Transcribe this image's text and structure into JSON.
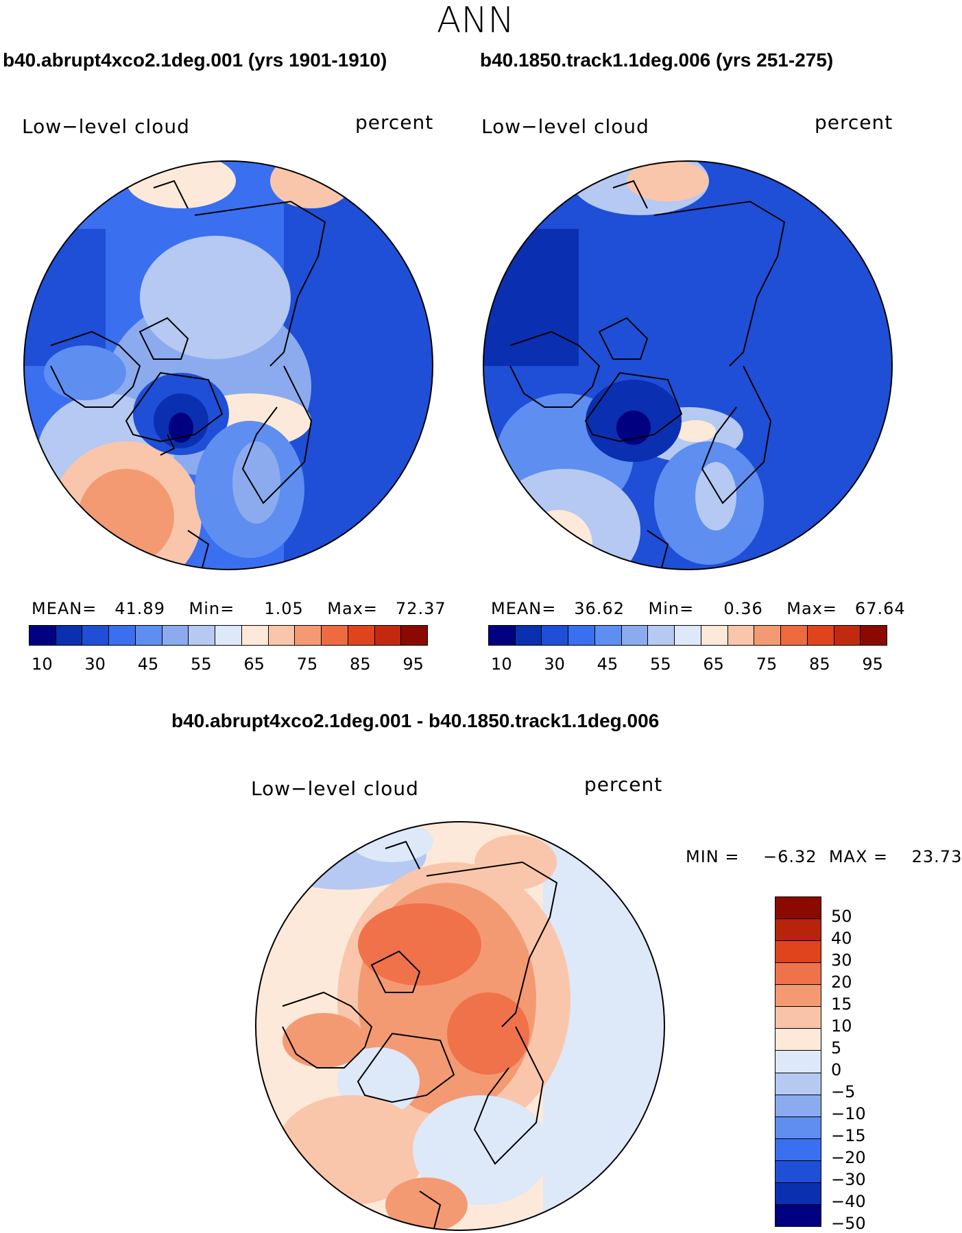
{
  "season": "ANN",
  "panels": [
    {
      "title": "b40.abrupt4xco2.1deg.001 (yrs 1901-1910)",
      "variable": "Low−level cloud",
      "units": "percent",
      "stats": {
        "mean_label": "MEAN=",
        "mean": "41.89",
        "min_label": "Min=",
        "min": "1.05",
        "max_label": "Max=",
        "max": "72.37"
      }
    },
    {
      "title": "b40.1850.track1.1deg.006 (yrs 251-275)",
      "variable": "Low−level cloud",
      "units": "percent",
      "stats": {
        "mean_label": "MEAN=",
        "mean": "36.62",
        "min_label": "Min=",
        "min": "0.36",
        "max_label": "Max=",
        "max": "67.64"
      }
    }
  ],
  "diff": {
    "title": "b40.abrupt4xco2.1deg.001 - b40.1850.track1.1deg.006",
    "variable": "Low−level cloud",
    "units": "percent",
    "stats": {
      "min_label": "MIN =",
      "min": "−6.32",
      "max_label": "MAX =",
      "max": "23.73"
    }
  },
  "colorbar_main": {
    "colors": [
      "#000080",
      "#0a2fb0",
      "#1e4fd6",
      "#3a6ff0",
      "#5e8ef0",
      "#8cabef",
      "#b5c9f2",
      "#dde8f8",
      "#fde9d9",
      "#f9c6ab",
      "#f49a73",
      "#ee6a3f",
      "#e0441c",
      "#c22a0f",
      "#8b0a00"
    ],
    "tick_labels": [
      "10",
      "30",
      "45",
      "55",
      "65",
      "75",
      "85",
      "95"
    ]
  },
  "colorbar_diff": {
    "colors": [
      "#8b0a00",
      "#b8230b",
      "#e0441c",
      "#f0724a",
      "#f49a73",
      "#f8c3a8",
      "#fde9d9",
      "#dde8f8",
      "#b5c9f2",
      "#8cabef",
      "#5e8ef0",
      "#3a6ff0",
      "#1e4fd6",
      "#0a2fb0",
      "#000080"
    ],
    "tick_labels": [
      "50",
      "40",
      "30",
      "20",
      "15",
      "10",
      "5",
      "0",
      "−5",
      "−10",
      "−15",
      "−20",
      "−30",
      "−40",
      "−50"
    ]
  }
}
